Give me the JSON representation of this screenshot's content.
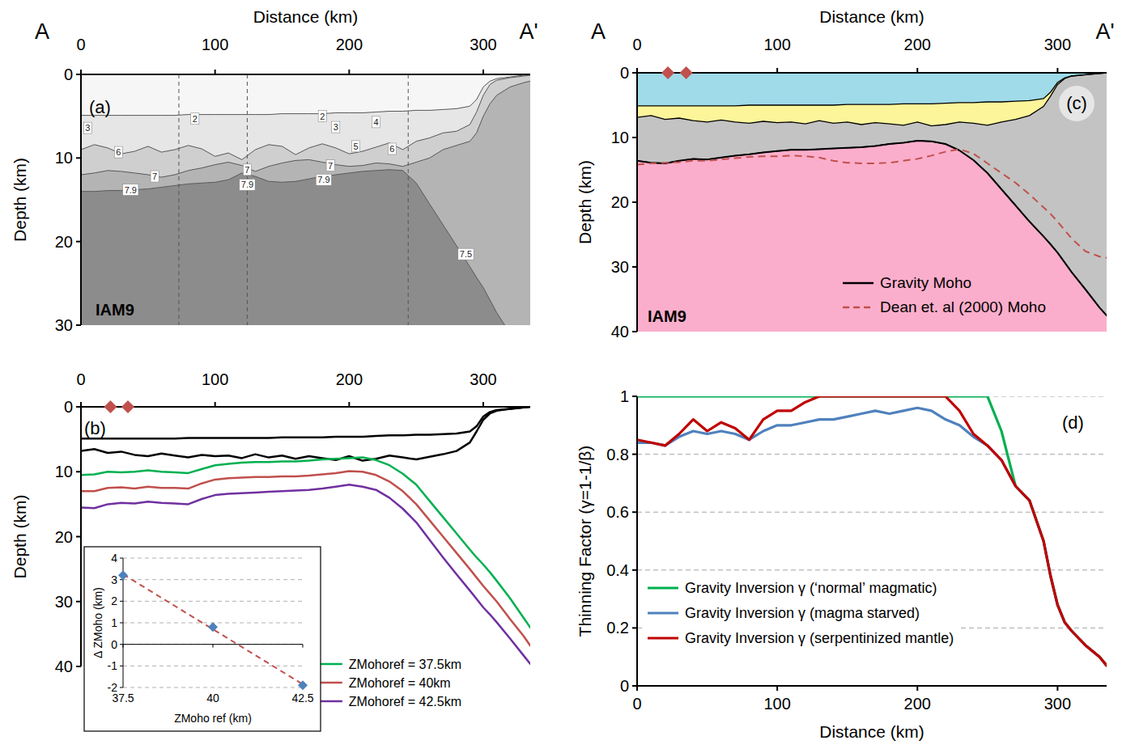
{
  "chart_data": [
    {
      "type": "section",
      "panel": "(a)",
      "title": "IAM9",
      "profile_start": "A",
      "profile_end": "A'",
      "x_label": "Distance (km)",
      "y_label": "Depth (km)",
      "xlim": [
        0,
        335
      ],
      "ylim": [
        30,
        0
      ],
      "xticks": [
        0,
        100,
        200,
        300
      ],
      "yticks": [
        0,
        10,
        20,
        30
      ],
      "color": "#8c8c8c",
      "x": [
        0,
        10,
        20,
        30,
        40,
        50,
        60,
        70,
        80,
        90,
        100,
        110,
        120,
        130,
        140,
        150,
        160,
        170,
        180,
        190,
        200,
        210,
        220,
        230,
        240,
        250,
        260,
        270,
        280,
        290,
        295,
        300,
        305,
        310,
        320,
        330,
        335
      ],
      "layers": [
        {
          "color": "#f6f6f6",
          "values": [
            4.9,
            4.9,
            4.9,
            4.9,
            4.9,
            4.9,
            4.9,
            4.9,
            4.8,
            4.8,
            4.8,
            4.8,
            4.8,
            4.8,
            4.8,
            4.7,
            4.7,
            4.7,
            4.7,
            4.6,
            4.6,
            4.6,
            4.5,
            4.4,
            4.4,
            4.3,
            4.3,
            4.2,
            4.1,
            3.8,
            3.0,
            1.5,
            0.8,
            0.5,
            0.3,
            0.1,
            0.0
          ]
        },
        {
          "color": "#e6e6e6",
          "values": [
            9.0,
            8.4,
            8.8,
            9.5,
            9.2,
            8.6,
            9.3,
            9.0,
            8.5,
            8.9,
            9.8,
            9.4,
            10.2,
            9.0,
            8.4,
            8.6,
            9.6,
            8.8,
            8.3,
            8.8,
            9.5,
            9.2,
            8.7,
            8.2,
            9.0,
            8.0,
            7.6,
            7.0,
            6.8,
            6.0,
            4.5,
            2.5,
            1.2,
            0.7,
            0.4,
            0.2,
            0.1
          ]
        },
        {
          "color": "#cfcfcf",
          "values": [
            12.0,
            11.8,
            11.5,
            11.6,
            11.8,
            12.0,
            12.3,
            12.0,
            11.5,
            11.2,
            10.8,
            10.5,
            10.9,
            11.6,
            11.0,
            10.6,
            10.3,
            10.2,
            10.5,
            10.8,
            11.0,
            10.9,
            10.6,
            10.7,
            11.0,
            10.5,
            10.0,
            9.0,
            8.5,
            8.0,
            7.0,
            5.0,
            3.5,
            2.5,
            1.5,
            1.0,
            0.8
          ]
        },
        {
          "color": "#b4b4b4",
          "values": [
            14.0,
            14.0,
            13.9,
            13.9,
            13.8,
            13.7,
            13.5,
            13.3,
            13.1,
            13.0,
            12.9,
            12.6,
            11.8,
            12.2,
            12.8,
            12.9,
            12.8,
            12.5,
            12.2,
            12.0,
            11.8,
            11.6,
            11.5,
            11.4,
            11.5,
            13.0,
            15.5,
            18.0,
            20.5,
            23.0,
            24.3,
            25.5,
            27.0,
            28.5,
            31.0,
            33.5,
            34.5
          ]
        }
      ],
      "vertical_lines": [
        73,
        124,
        244
      ],
      "annotations": [
        {
          "text": "3",
          "x": 5,
          "y": 6.4
        },
        {
          "text": "6",
          "x": 28,
          "y": 9.3
        },
        {
          "text": "7",
          "x": 55,
          "y": 12.2
        },
        {
          "text": "7.9",
          "x": 37,
          "y": 13.8
        },
        {
          "text": "2",
          "x": 85,
          "y": 5.3
        },
        {
          "text": "7",
          "x": 124,
          "y": 11.4
        },
        {
          "text": "7.9",
          "x": 124,
          "y": 13.2
        },
        {
          "text": "2",
          "x": 180,
          "y": 5.0
        },
        {
          "text": "3",
          "x": 190,
          "y": 6.3
        },
        {
          "text": "4",
          "x": 220,
          "y": 5.7
        },
        {
          "text": "5",
          "x": 205,
          "y": 8.6
        },
        {
          "text": "7",
          "x": 186,
          "y": 10.9
        },
        {
          "text": "7.9",
          "x": 181,
          "y": 12.6
        },
        {
          "text": "6",
          "x": 232,
          "y": 8.9
        },
        {
          "text": "7.5",
          "x": 287,
          "y": 21.5
        }
      ]
    },
    {
      "type": "line",
      "panel": "(b)",
      "y_label": "Depth (km)",
      "xlim": [
        0,
        335
      ],
      "ylim": [
        40,
        0
      ],
      "xticks": [
        0,
        100,
        200,
        300
      ],
      "yticks": [
        0,
        10,
        20,
        30,
        40
      ],
      "legend": "lower right",
      "x": [
        0,
        10,
        20,
        30,
        40,
        50,
        60,
        70,
        80,
        90,
        100,
        110,
        120,
        130,
        140,
        150,
        160,
        170,
        180,
        190,
        200,
        210,
        220,
        230,
        240,
        250,
        260,
        270,
        280,
        290,
        295,
        300,
        305,
        310,
        320,
        330,
        335
      ],
      "series": [
        {
          "color": "#000000",
          "values": [
            4.9,
            4.9,
            4.9,
            4.9,
            4.9,
            4.9,
            4.9,
            4.9,
            4.8,
            4.8,
            4.8,
            4.8,
            4.8,
            4.8,
            4.8,
            4.7,
            4.7,
            4.7,
            4.7,
            4.6,
            4.6,
            4.6,
            4.5,
            4.4,
            4.4,
            4.3,
            4.3,
            4.2,
            4.1,
            3.8,
            3.0,
            1.5,
            0.8,
            0.5,
            0.3,
            0.1,
            0.0
          ]
        },
        {
          "color": "#000000",
          "values": [
            6.8,
            6.5,
            7.1,
            6.9,
            7.4,
            7.6,
            7.2,
            7.5,
            7.8,
            7.4,
            7.6,
            7.5,
            7.9,
            7.3,
            7.8,
            7.5,
            8.0,
            7.6,
            7.9,
            8.2,
            7.6,
            8.3,
            8.0,
            7.5,
            7.8,
            8.1,
            7.7,
            7.3,
            6.8,
            5.5,
            3.8,
            2.0,
            1.0,
            0.6,
            0.3,
            0.1,
            0.0
          ]
        },
        {
          "name": "ZMohoref = 37.5km",
          "color": "#00b050",
          "values": [
            10.5,
            10.4,
            10.0,
            10.1,
            10.0,
            9.8,
            10.0,
            10.1,
            10.2,
            9.6,
            9.0,
            8.8,
            8.6,
            8.5,
            8.5,
            8.4,
            8.4,
            8.3,
            8.1,
            8.0,
            7.9,
            7.8,
            8.2,
            9.0,
            10.3,
            12.0,
            14.5,
            17.0,
            19.5,
            22.0,
            23.2,
            24.3,
            25.5,
            26.8,
            29.5,
            32.5,
            34.0
          ]
        },
        {
          "name": "ZMohoref = 40km",
          "color": "#c0504d",
          "values": [
            13.0,
            13.0,
            12.5,
            12.4,
            12.6,
            12.3,
            12.5,
            12.5,
            12.6,
            11.8,
            11.2,
            11.0,
            10.9,
            10.8,
            10.8,
            10.7,
            10.7,
            10.6,
            10.4,
            10.2,
            9.9,
            10.0,
            10.5,
            11.5,
            13.0,
            15.0,
            17.5,
            20.0,
            22.5,
            25.0,
            26.3,
            27.6,
            28.8,
            30.0,
            32.7,
            35.3,
            36.8
          ]
        },
        {
          "name": "ZMohoref = 42.5km",
          "color": "#7030a0",
          "values": [
            15.5,
            15.6,
            15.0,
            14.8,
            14.9,
            14.6,
            14.8,
            14.9,
            15.0,
            14.2,
            13.6,
            13.4,
            13.3,
            13.2,
            13.1,
            13.0,
            12.9,
            12.8,
            12.6,
            12.3,
            12.0,
            12.3,
            12.8,
            14.0,
            15.7,
            17.8,
            20.5,
            23.2,
            25.8,
            28.3,
            29.6,
            30.9,
            32.0,
            33.2,
            35.7,
            38.3,
            39.6
          ]
        },
        {
          "type": "scatter",
          "marker": "diamond",
          "color": "#c0504d",
          "x": [
            22,
            35
          ],
          "values": [
            0,
            0
          ]
        }
      ],
      "inset": {
        "type": "scatter",
        "x_label": "ZMoho ref (km)",
        "y_label": "Δ ZMoho (km)",
        "xlim": [
          37.5,
          42.5
        ],
        "ylim": [
          -2,
          4
        ],
        "xticks": [
          37.5,
          40,
          42.5
        ],
        "yticks": [
          -2,
          -1,
          0,
          1,
          2,
          3,
          4
        ],
        "grid": true,
        "x": [
          37.5,
          40,
          42.5
        ],
        "values": [
          3.2,
          0.8,
          -1.9
        ],
        "color": "#4f81bd",
        "marker": "diamond",
        "fit": {
          "x": [
            37.5,
            42.5
          ],
          "values": [
            3.25,
            -1.85
          ],
          "color": "#c0504d",
          "line_style": "dashed"
        }
      }
    },
    {
      "type": "section",
      "panel": "(c)",
      "title": "IAM9",
      "profile_start": "A",
      "profile_end": "A'",
      "x_label": "Distance (km)",
      "y_label": "Depth (km)",
      "xlim": [
        0,
        335
      ],
      "ylim": [
        40,
        0
      ],
      "xticks": [
        0,
        100,
        200,
        300
      ],
      "yticks": [
        0,
        10,
        20,
        30,
        40
      ],
      "color": "#fbaecb",
      "legend": "lower right",
      "x": [
        0,
        10,
        20,
        30,
        40,
        50,
        60,
        70,
        80,
        90,
        100,
        110,
        120,
        130,
        140,
        150,
        160,
        170,
        180,
        190,
        200,
        210,
        220,
        230,
        240,
        250,
        260,
        270,
        280,
        290,
        295,
        300,
        305,
        310,
        320,
        330,
        335
      ],
      "layers": [
        {
          "color": "#9fdbe9",
          "values": [
            5.1,
            5.1,
            5.1,
            5.1,
            5.1,
            5.1,
            5.1,
            5.1,
            5.0,
            5.0,
            5.0,
            5.0,
            5.0,
            5.0,
            5.0,
            4.9,
            4.9,
            4.9,
            4.9,
            4.8,
            4.8,
            4.8,
            4.7,
            4.6,
            4.6,
            4.5,
            4.5,
            4.4,
            4.3,
            4.0,
            3.0,
            1.5,
            0.8,
            0.5,
            0.3,
            0.1,
            0.0
          ]
        },
        {
          "color": "#fdf59a",
          "values": [
            6.9,
            6.6,
            7.2,
            7.0,
            7.4,
            7.6,
            7.3,
            7.6,
            7.8,
            7.5,
            7.7,
            7.6,
            7.9,
            7.4,
            7.8,
            7.6,
            8.0,
            7.7,
            7.9,
            8.1,
            7.6,
            8.2,
            8.0,
            7.6,
            7.8,
            8.1,
            7.6,
            7.2,
            6.6,
            5.2,
            3.6,
            1.8,
            0.9,
            0.5,
            0.3,
            0.1,
            0.0
          ]
        },
        {
          "color": "#c3c3c3",
          "values": [
            13.6,
            13.9,
            14.0,
            13.6,
            13.3,
            13.4,
            13.1,
            12.8,
            12.6,
            12.3,
            12.1,
            11.9,
            11.9,
            11.8,
            11.7,
            11.6,
            11.5,
            11.3,
            11.0,
            10.8,
            10.5,
            10.6,
            11.0,
            12.0,
            13.5,
            15.5,
            18.0,
            20.5,
            23.0,
            25.3,
            26.5,
            27.8,
            29.3,
            30.8,
            33.5,
            36.3,
            37.5
          ]
        }
      ],
      "series": [
        {
          "name": "Gravity Moho",
          "color": "#000000",
          "line_style": "solid",
          "values": [
            13.6,
            13.9,
            14.0,
            13.6,
            13.3,
            13.4,
            13.1,
            12.8,
            12.6,
            12.3,
            12.1,
            11.9,
            11.9,
            11.8,
            11.7,
            11.6,
            11.5,
            11.3,
            11.0,
            10.8,
            10.5,
            10.6,
            11.0,
            12.0,
            13.5,
            15.5,
            18.0,
            20.5,
            23.0,
            25.3,
            26.5,
            27.8,
            29.3,
            30.8,
            33.5,
            36.3,
            37.5
          ]
        },
        {
          "name": "Dean et. al (2000) Moho",
          "color": "#c0504d",
          "line_style": "dashed",
          "values": [
            14.2,
            14.0,
            13.9,
            13.8,
            13.6,
            13.6,
            13.4,
            13.2,
            13.0,
            12.9,
            12.9,
            12.8,
            12.9,
            13.1,
            13.6,
            13.9,
            14.0,
            14.0,
            13.9,
            13.6,
            13.3,
            12.8,
            12.2,
            11.8,
            12.5,
            14.0,
            15.5,
            17.0,
            18.8,
            20.8,
            21.8,
            23.0,
            24.3,
            25.6,
            27.6,
            28.4,
            28.6
          ]
        },
        {
          "type": "scatter",
          "marker": "diamond",
          "color": "#c0504d",
          "x": [
            22,
            35
          ],
          "values": [
            0,
            0
          ]
        }
      ]
    },
    {
      "type": "line",
      "panel": "(d)",
      "x_label": "Distance (km)",
      "y_label": "Thinning Factor (γ=1-1/β)",
      "xlim": [
        0,
        335
      ],
      "ylim": [
        0,
        1
      ],
      "xticks": [
        0,
        100,
        200,
        300
      ],
      "yticks": [
        0,
        0.2,
        0.4,
        0.6,
        0.8,
        1
      ],
      "grid": true,
      "legend": "lower left",
      "x": [
        0,
        10,
        20,
        30,
        40,
        50,
        60,
        70,
        80,
        90,
        100,
        110,
        120,
        130,
        140,
        150,
        160,
        170,
        180,
        190,
        200,
        210,
        220,
        230,
        240,
        250,
        260,
        270,
        280,
        290,
        295,
        300,
        305,
        310,
        320,
        330,
        335
      ],
      "series": [
        {
          "name": "Gravity Inversion γ (‘normal’ magmatic)",
          "color": "#00b050",
          "values": [
            1,
            1,
            1,
            1,
            1,
            1,
            1,
            1,
            1,
            1,
            1,
            1,
            1,
            1,
            1,
            1,
            1,
            1,
            1,
            1,
            1,
            1,
            1,
            1,
            1,
            1,
            0.88,
            0.69,
            0.64,
            0.5,
            0.38,
            0.28,
            0.22,
            0.19,
            0.14,
            0.1,
            0.07
          ]
        },
        {
          "name": "Gravity Inversion γ (magma starved)",
          "color": "#4f81bd",
          "values": [
            0.84,
            0.84,
            0.83,
            0.86,
            0.88,
            0.87,
            0.88,
            0.87,
            0.85,
            0.88,
            0.9,
            0.9,
            0.91,
            0.92,
            0.92,
            0.93,
            0.94,
            0.95,
            0.94,
            0.95,
            0.96,
            0.95,
            0.92,
            0.9,
            0.86,
            0.83,
            0.78,
            0.69,
            0.64,
            0.5,
            0.38,
            0.28,
            0.22,
            0.19,
            0.14,
            0.1,
            0.07
          ]
        },
        {
          "name": "Gravity Inversion γ (serpentinized mantle)",
          "color": "#c00000",
          "values": [
            0.85,
            0.84,
            0.83,
            0.87,
            0.92,
            0.88,
            0.91,
            0.89,
            0.85,
            0.92,
            0.95,
            0.95,
            0.98,
            1.0,
            1.0,
            1.0,
            1.0,
            1.0,
            1.0,
            1.0,
            1.0,
            1.0,
            1.0,
            0.95,
            0.87,
            0.83,
            0.78,
            0.69,
            0.64,
            0.5,
            0.38,
            0.28,
            0.22,
            0.19,
            0.14,
            0.1,
            0.07
          ]
        }
      ]
    }
  ]
}
